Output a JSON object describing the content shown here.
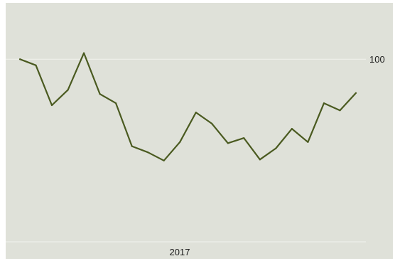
{
  "chart_data": {
    "type": "line",
    "title": "",
    "xlabel": "",
    "ylabel": "",
    "x_tick_labels": [
      "2017"
    ],
    "y_tick_labels": [
      "100"
    ],
    "ylim": [
      80.5,
      105.5
    ],
    "grid": "horizontal",
    "y_axis_side": "right",
    "series": [
      {
        "values": [
          100,
          99.4,
          95.5,
          97,
          100.6,
          96.6,
          95.7,
          91.5,
          90.9,
          90.1,
          91.9,
          94.8,
          93.7,
          91.8,
          92.3,
          90.2,
          91.3,
          93.2,
          91.9,
          95.7,
          95,
          96.7
        ]
      }
    ]
  },
  "colors": {
    "panel_background": "#dfe1d9",
    "gridline": "#f2f3ee",
    "line": "#4a5a20"
  }
}
